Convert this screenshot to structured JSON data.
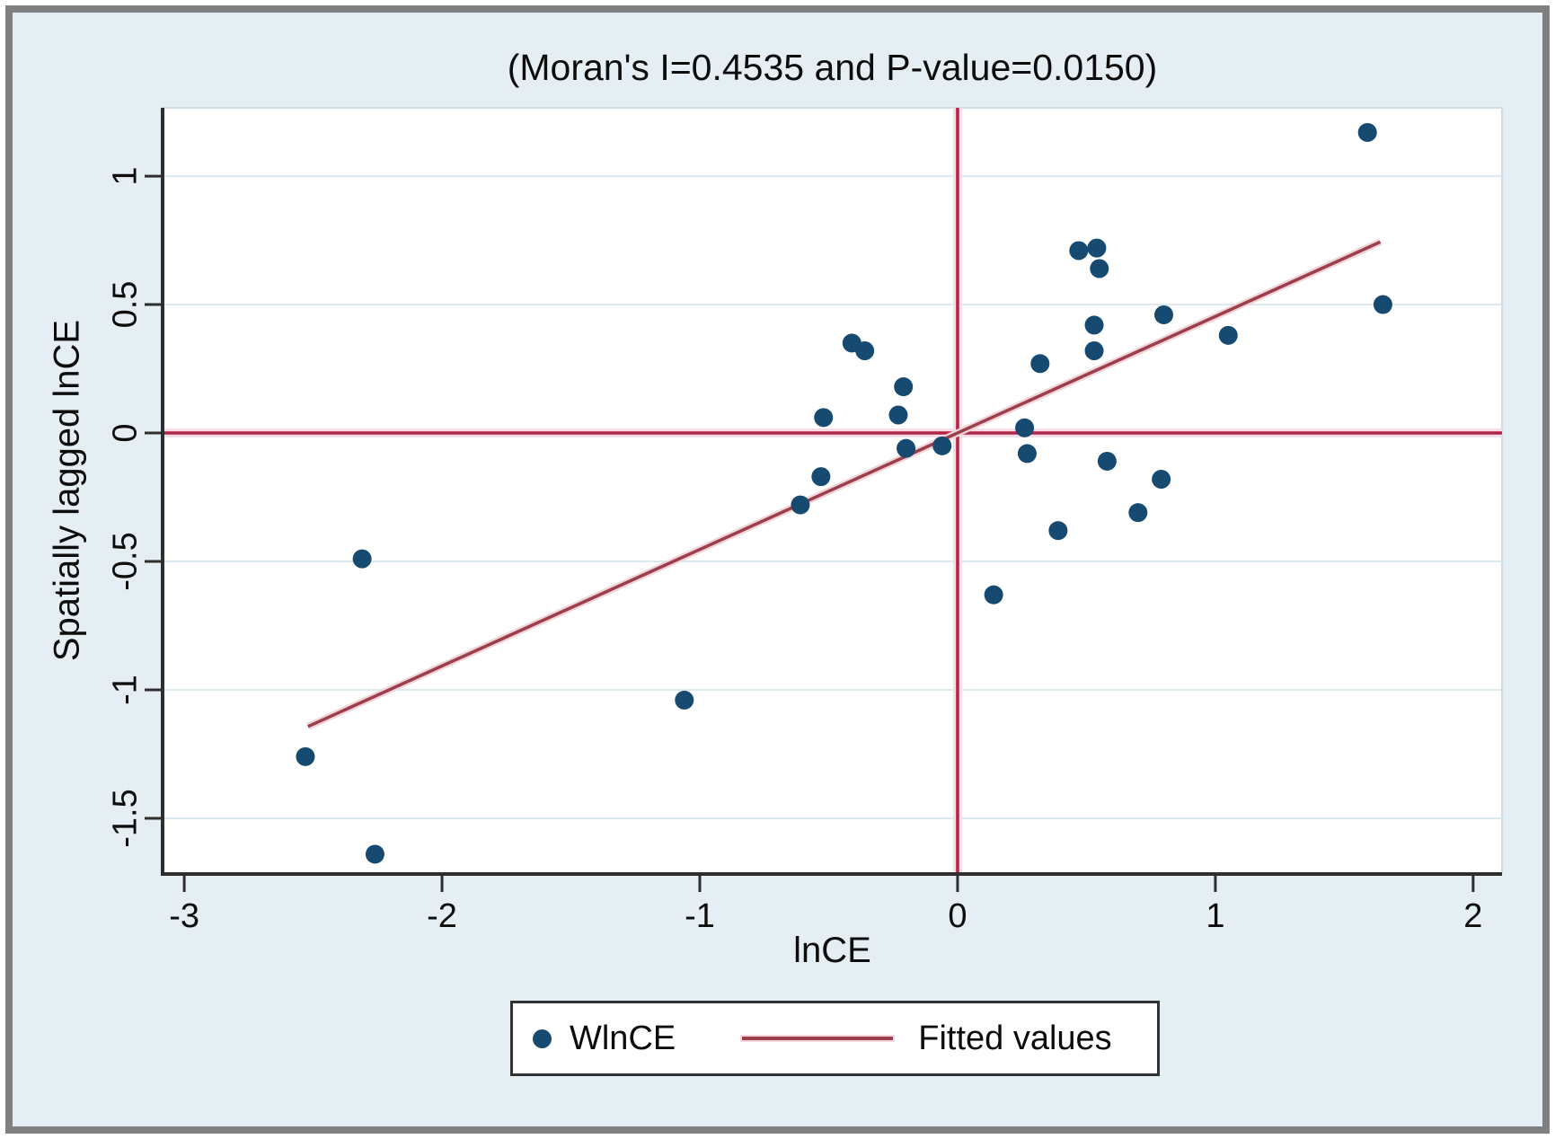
{
  "chart_data": {
    "type": "scatter",
    "title": "(Moran's I=0.4535 and P-value=0.0150)",
    "moran_i": 0.4535,
    "p_value": 0.015,
    "xlabel": "lnCE",
    "ylabel": "Spatially lagged lnCE",
    "xlim": [
      -3.084,
      2.112
    ],
    "ylim": [
      -1.717,
      1.266
    ],
    "x_ticks": [
      -3,
      -2,
      -1,
      0,
      1,
      2
    ],
    "x_tick_labels": [
      "-3",
      "-2",
      "-1",
      "0",
      "1",
      "2"
    ],
    "y_ticks": [
      1,
      0.5,
      0,
      -0.5,
      -1,
      -1.5
    ],
    "y_tick_labels": [
      "1",
      "0.5",
      "0",
      "-0.5",
      "-1",
      "-1.5"
    ],
    "grid": "horizontal",
    "legend_position": "bottom",
    "crosshair": {
      "x": 0,
      "y": 0
    },
    "series": [
      {
        "name": "WlnCE",
        "type": "scatter",
        "color": "#164a70",
        "points": [
          [
            -2.53,
            -1.26
          ],
          [
            -2.31,
            -0.49
          ],
          [
            -2.26,
            -1.64
          ],
          [
            -1.06,
            -1.04
          ],
          [
            -0.61,
            -0.28
          ],
          [
            -0.53,
            -0.17
          ],
          [
            -0.52,
            0.06
          ],
          [
            -0.41,
            0.35
          ],
          [
            -0.36,
            0.32
          ],
          [
            -0.23,
            0.07
          ],
          [
            -0.21,
            0.18
          ],
          [
            -0.2,
            -0.06
          ],
          [
            -0.06,
            -0.05
          ],
          [
            0.14,
            -0.63
          ],
          [
            0.26,
            0.02
          ],
          [
            0.27,
            -0.08
          ],
          [
            0.32,
            0.27
          ],
          [
            0.39,
            -0.38
          ],
          [
            0.47,
            0.71
          ],
          [
            0.53,
            0.42
          ],
          [
            0.53,
            0.32
          ],
          [
            0.54,
            0.72
          ],
          [
            0.55,
            0.64
          ],
          [
            0.58,
            -0.11
          ],
          [
            0.7,
            -0.31
          ],
          [
            0.79,
            -0.18
          ],
          [
            0.8,
            0.46
          ],
          [
            1.05,
            0.38
          ],
          [
            1.59,
            1.17
          ],
          [
            1.65,
            0.5
          ]
        ]
      },
      {
        "name": "Fitted values",
        "type": "line",
        "color": "#9c3e4b",
        "slope": 0.4535,
        "intercept": 0,
        "x_start": -2.52,
        "x_end": 1.64
      }
    ],
    "colors": {
      "background": "#e5eff3",
      "plot_background": "#ffffff",
      "gridline": "#dce9ee",
      "axis_line": "#2e2e2e",
      "crosshair_core": "#b02445",
      "crosshair_halo": "#f8dde8",
      "fit_core": "#9c3e4b",
      "fit_halo": "#f0d4d8",
      "point": "#164a70",
      "frame_border": "#808080",
      "legend_border": "#323232"
    }
  }
}
